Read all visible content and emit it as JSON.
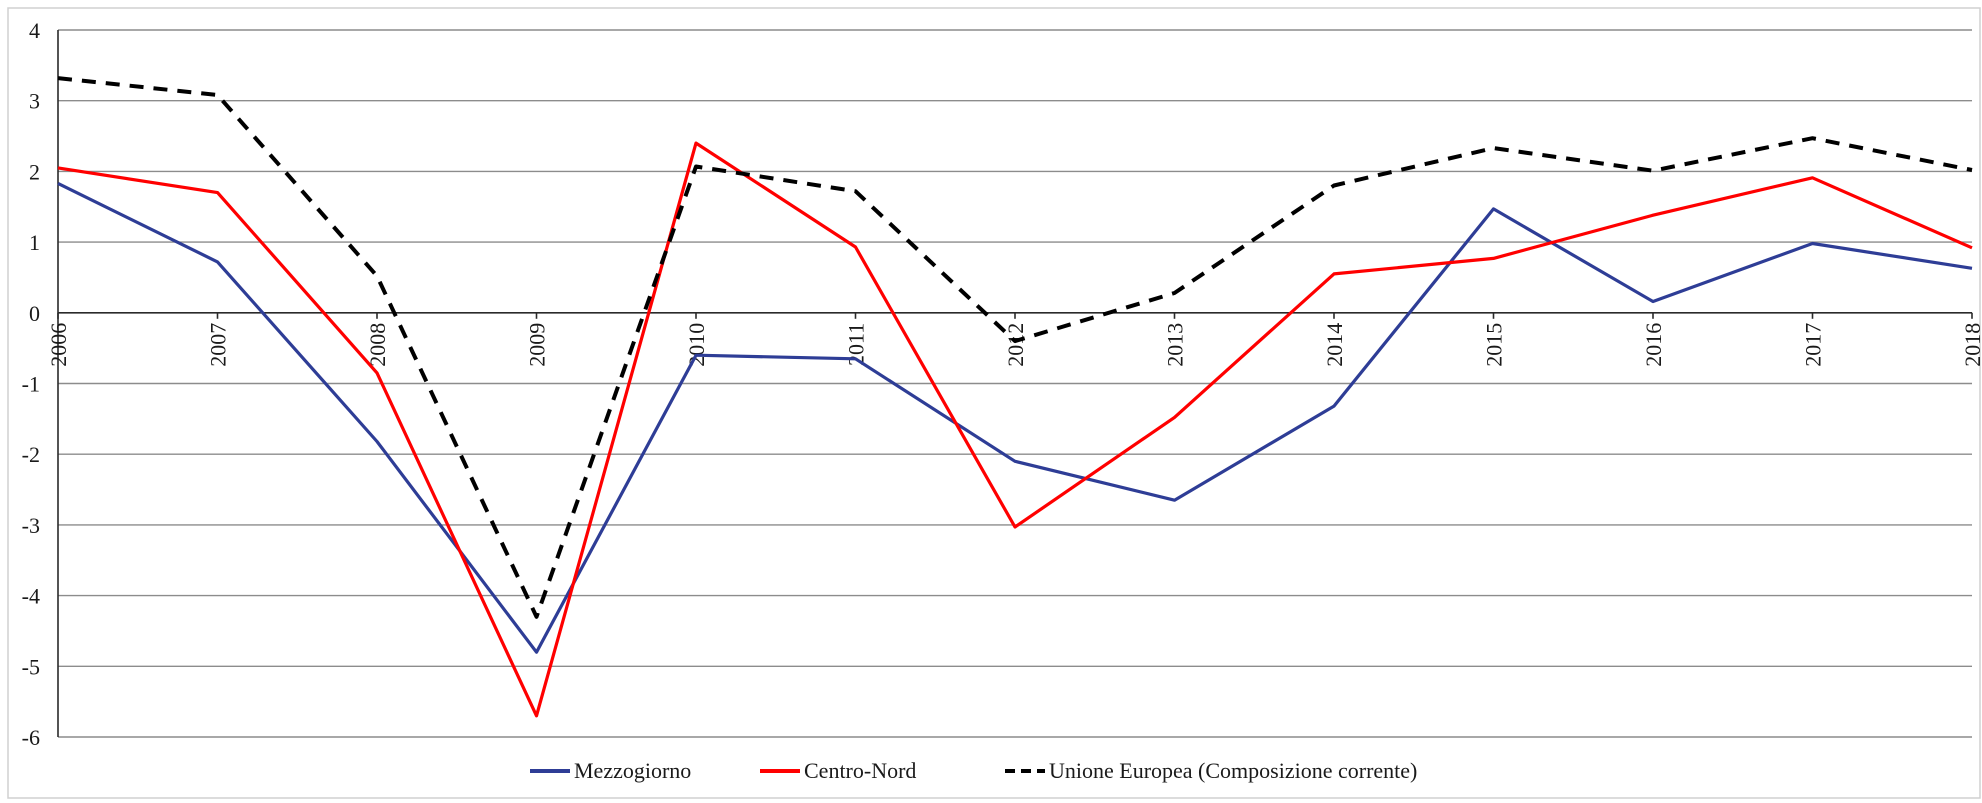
{
  "chart_data": {
    "type": "line",
    "title": "",
    "xlabel": "",
    "ylabel": "",
    "x": [
      "2006",
      "2007",
      "2008",
      "2009",
      "2010",
      "2011",
      "2012",
      "2013",
      "2014",
      "2015",
      "2016",
      "2017",
      "2018"
    ],
    "ylim": [
      -6,
      4
    ],
    "yticks": [
      "4",
      "3",
      "2",
      "1",
      "0",
      "-1",
      "-2",
      "-3",
      "-4",
      "-5",
      "-6"
    ],
    "grid": true,
    "legend": "bottom",
    "series": [
      {
        "name": "Mezzogiorno",
        "color": "#2e3d96",
        "dash": "solid",
        "values": [
          1.83,
          0.72,
          -1.82,
          -4.8,
          -0.6,
          -0.65,
          -2.1,
          -2.65,
          -1.32,
          1.47,
          0.16,
          0.98,
          0.63
        ]
      },
      {
        "name": "Centro-Nord",
        "color": "#ff0000",
        "dash": "solid",
        "values": [
          2.05,
          1.7,
          -0.85,
          -5.7,
          2.4,
          0.93,
          -3.03,
          -1.48,
          0.55,
          0.77,
          1.38,
          1.91,
          0.92
        ]
      },
      {
        "name": "Unione Europea (Composizione corrente)",
        "color": "#000000",
        "dash": "dashed",
        "values": [
          3.32,
          3.08,
          0.52,
          -4.3,
          2.07,
          1.72,
          -0.4,
          0.28,
          1.8,
          2.33,
          2.01,
          2.47,
          2.02
        ]
      }
    ]
  }
}
